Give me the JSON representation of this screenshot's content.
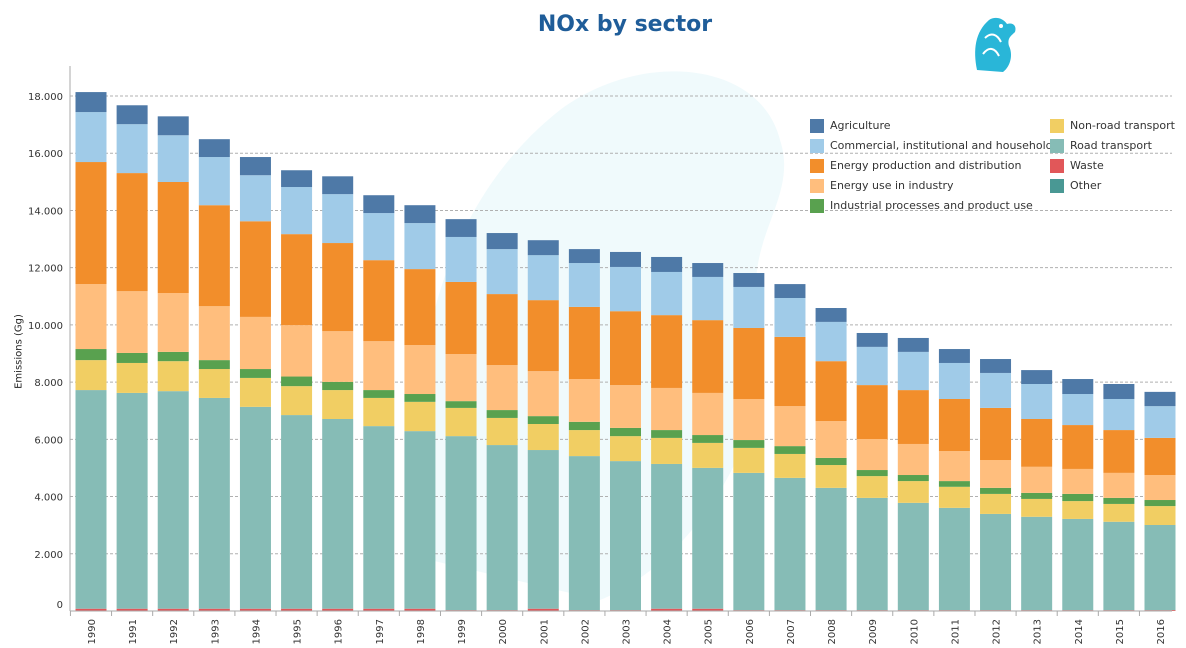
{
  "chart_data": {
    "type": "bar",
    "stacked": true,
    "title": "NOx by sector",
    "xlabel": "",
    "ylabel": "Emissions (Gg)",
    "ylim": [
      0,
      18000
    ],
    "yticks": [
      0,
      2000,
      4000,
      6000,
      8000,
      10000,
      12000,
      14000,
      16000,
      18000
    ],
    "ytick_labels": [
      "0",
      "2.000",
      "4.000",
      "6.000",
      "8.000",
      "10.000",
      "12.000",
      "14.000",
      "16.000",
      "18.000"
    ],
    "grid": true,
    "legend_position": "top-right",
    "categories": [
      "1990",
      "1991",
      "1992",
      "1993",
      "1994",
      "1995",
      "1996",
      "1997",
      "1998",
      "1999",
      "2000",
      "2001",
      "2002",
      "2003",
      "2004",
      "2005",
      "2006",
      "2007",
      "2008",
      "2009",
      "2010",
      "2011",
      "2012",
      "2013",
      "2014",
      "2015",
      "2016"
    ],
    "series": [
      {
        "name": "Waste",
        "color": "#e15759",
        "values": [
          80,
          80,
          80,
          80,
          80,
          80,
          80,
          80,
          80,
          30,
          30,
          80,
          30,
          30,
          80,
          80,
          30,
          30,
          30,
          30,
          30,
          30,
          30,
          30,
          30,
          30,
          30
        ]
      },
      {
        "name": "Road transport",
        "color": "#86bcb6",
        "values": [
          7642,
          7542,
          7604,
          7367,
          7055,
          6768,
          6631,
          6382,
          6207,
          6082,
          5770,
          5546,
          5384,
          5209,
          5059,
          4922,
          4797,
          4623,
          4274,
          3924,
          3750,
          3575,
          3363,
          3263,
          3188,
          3089,
          2976
        ]
      },
      {
        "name": "Non-road transport",
        "color": "#f1ce63",
        "values": [
          1047,
          1047,
          1048,
          1010,
          1011,
          1011,
          1011,
          985,
          1023,
          986,
          948,
          910,
          910,
          873,
          911,
          873,
          874,
          836,
          798,
          761,
          761,
          736,
          699,
          624,
          624,
          623,
          661
        ]
      },
      {
        "name": "Industrial processes and product use",
        "color": "#59a14f",
        "values": [
          387,
          350,
          324,
          312,
          311,
          336,
          286,
          275,
          274,
          237,
          275,
          275,
          287,
          287,
          274,
          275,
          274,
          274,
          249,
          212,
          212,
          200,
          212,
          212,
          250,
          212,
          212
        ]
      },
      {
        "name": "Energy use in industry",
        "color": "#ffbe7d",
        "values": [
          2270,
          2158,
          2058,
          1884,
          1822,
          1797,
          1772,
          1708,
          1709,
          1646,
          1572,
          1572,
          1497,
          1497,
          1472,
          1472,
          1435,
          1397,
          1285,
          1085,
          1085,
          1047,
          973,
          911,
          873,
          873,
          874
        ]
      },
      {
        "name": "Energy production and distribution",
        "color": "#f28e2b",
        "values": [
          4266,
          4129,
          3880,
          3530,
          3343,
          3180,
          3081,
          2832,
          2657,
          2520,
          2482,
          2482,
          2520,
          2582,
          2545,
          2544,
          2482,
          2420,
          2096,
          1884,
          1883,
          1822,
          1821,
          1671,
          1534,
          1497,
          1297
        ]
      },
      {
        "name": "Commercial, institutional and households",
        "color": "#a0cbe8",
        "values": [
          1746,
          1709,
          1634,
          1684,
          1609,
          1647,
          1709,
          1647,
          1609,
          1572,
          1572,
          1572,
          1534,
          1547,
          1509,
          1510,
          1434,
          1360,
          1372,
          1335,
          1335,
          1259,
          1222,
          1223,
          1085,
          1086,
          1110
        ]
      },
      {
        "name": "Agriculture",
        "color": "#4e79a7",
        "values": [
          699,
          661,
          661,
          624,
          636,
          586,
          623,
          623,
          624,
          623,
          561,
          523,
          487,
          524,
          524,
          486,
          487,
          486,
          486,
          486,
          487,
          487,
          487,
          486,
          524,
          524,
          499
        ]
      },
      {
        "name": "Other",
        "color": "#499894",
        "values": [
          0,
          0,
          0,
          0,
          0,
          0,
          0,
          0,
          0,
          0,
          0,
          0,
          0,
          0,
          0,
          0,
          0,
          0,
          0,
          0,
          0,
          0,
          0,
          0,
          0,
          0,
          0
        ]
      }
    ],
    "legend": [
      {
        "label": "Agriculture",
        "color": "#4e79a7"
      },
      {
        "label": "Commercial, institutional and households",
        "color": "#a0cbe8"
      },
      {
        "label": "Energy production and distribution",
        "color": "#f28e2b"
      },
      {
        "label": "Energy use in industry",
        "color": "#ffbe7d"
      },
      {
        "label": "Industrial processes and product use",
        "color": "#59a14f"
      },
      {
        "label": "Non-road transport",
        "color": "#f1ce63"
      },
      {
        "label": "Road transport",
        "color": "#86bcb6"
      },
      {
        "label": "Waste",
        "color": "#e15759"
      },
      {
        "label": "Other",
        "color": "#499894"
      }
    ]
  }
}
